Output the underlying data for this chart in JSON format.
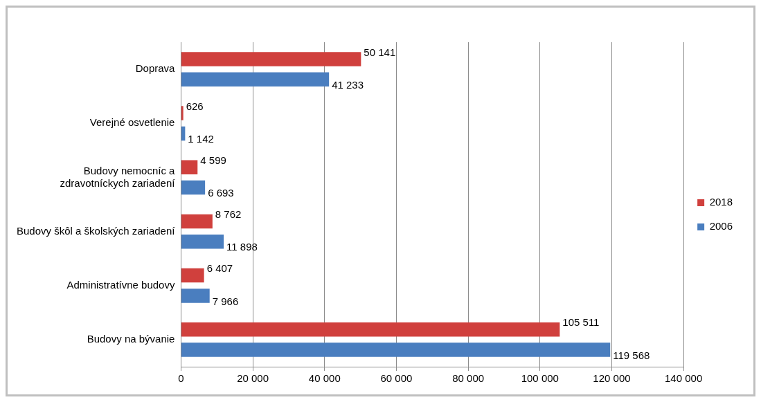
{
  "chart_data": {
    "type": "bar",
    "orientation": "horizontal",
    "categories": [
      "Doprava",
      "Verejné osvetlenie",
      "Budovy nemocníc a zdravotníckych zariadení",
      "Budovy škôl a školských zariadení",
      "Administratívne budovy",
      "Budovy na bývanie"
    ],
    "series": [
      {
        "name": "2018",
        "color": "#d0403d",
        "values": [
          50141,
          626,
          4599,
          8762,
          6407,
          105511
        ],
        "value_labels": [
          "50 141",
          "626",
          "4 599",
          "8 762",
          "6 407",
          "105 511"
        ]
      },
      {
        "name": "2006",
        "color": "#4a7ebf",
        "values": [
          41233,
          1142,
          6693,
          11898,
          7966,
          119568
        ],
        "value_labels": [
          "41 233",
          "1 142",
          "6 693",
          "11 898",
          "7 966",
          "119 568"
        ]
      }
    ],
    "xlim": [
      0,
      140000
    ],
    "xticks": [
      0,
      {
        "value": 20000,
        "label": "20 000"
      },
      {
        "value": 40000,
        "label": "40 000"
      },
      {
        "value": 60000,
        "label": "60 000"
      },
      {
        "value": 80000,
        "label": "80 000"
      },
      {
        "value": 100000,
        "label": "100 000"
      },
      {
        "value": 120000,
        "label": "120 000"
      },
      {
        "value": 140000,
        "label": "140 000"
      }
    ],
    "grid": "x",
    "legend": "right"
  }
}
